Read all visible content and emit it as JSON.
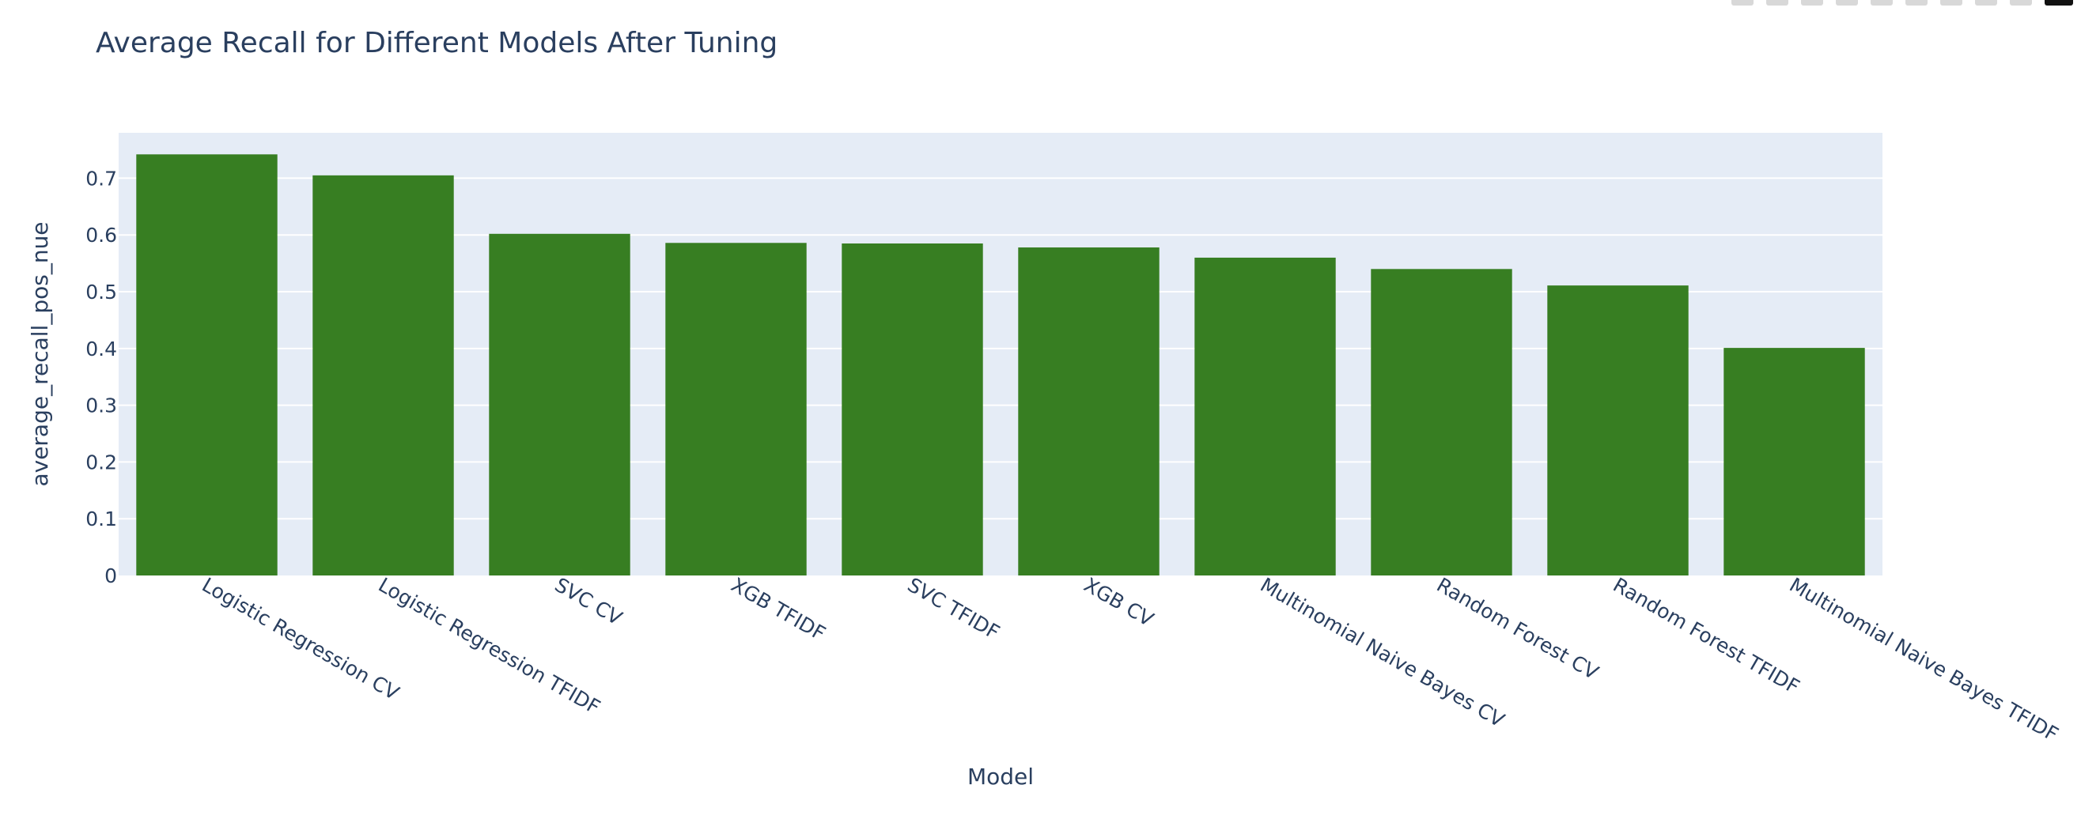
{
  "chart_data": {
    "type": "bar",
    "title": "Average Recall for Different Models After Tuning",
    "xlabel": "Model",
    "ylabel": "average_recall_pos_nue",
    "categories": [
      "Logistic Regression CV",
      "Logistic Regression TFIDF",
      "SVC CV",
      "XGB TFIDF",
      "SVC TFIDF",
      "XGB CV",
      "Multinomial Naive Bayes CV",
      "Random Forest CV",
      "Random Forest TFIDF",
      "Multinomial Naive Bayes TFIDF"
    ],
    "values": [
      0.742,
      0.705,
      0.602,
      0.586,
      0.585,
      0.578,
      0.56,
      0.54,
      0.511,
      0.401
    ],
    "ylim": [
      0,
      0.78
    ],
    "yticks": [
      0,
      0.1,
      0.2,
      0.3,
      0.4,
      0.5,
      0.6,
      0.7
    ],
    "ytick_labels": [
      "0",
      "0.1",
      "0.2",
      "0.3",
      "0.4",
      "0.5",
      "0.6",
      "0.7"
    ],
    "grid": true,
    "colors": {
      "bar": "#377e22",
      "plot_bg": "#e5ecf6",
      "grid": "#ffffff",
      "text": "#2a3f5f"
    }
  }
}
